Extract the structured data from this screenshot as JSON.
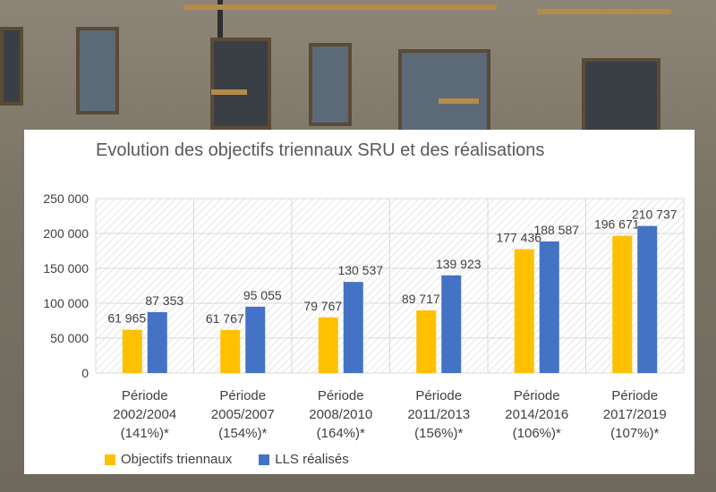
{
  "colors": {
    "objectifs": "#FFC000",
    "realises": "#4472C4",
    "grid": "#d9d9d9",
    "text": "#404040"
  },
  "chart_data": {
    "type": "bar",
    "title": "Evolution des objectifs triennaux SRU et des réalisations",
    "categories": [
      [
        "Période",
        "2002/2004",
        "(141%)*"
      ],
      [
        "Période",
        "2005/2007",
        "(154%)*"
      ],
      [
        "Période",
        "2008/2010",
        "(164%)*"
      ],
      [
        "Période",
        "2011/2013",
        "(156%)*"
      ],
      [
        "Période",
        "2014/2016",
        "(106%)*"
      ],
      [
        "Période",
        "2017/2019",
        "(107%)*"
      ]
    ],
    "series": [
      {
        "name": "Objectifs triennaux",
        "values": [
          61965,
          61767,
          79767,
          89717,
          177436,
          196671
        ],
        "labels": [
          "61 965",
          "61 767",
          "79 767",
          "89 717",
          "177 436",
          "196 671"
        ]
      },
      {
        "name": "LLS réalisés",
        "values": [
          87353,
          95055,
          130537,
          139923,
          188587,
          210737
        ],
        "labels": [
          "87 353",
          "95 055",
          "130 537",
          "139 923",
          "188 587",
          "210 737"
        ]
      }
    ],
    "y_ticks": [
      "0",
      "50 000",
      "100 000",
      "150 000",
      "200 000",
      "250 000"
    ],
    "ylim": [
      0,
      250000
    ],
    "xlabel": "",
    "ylabel": "",
    "grid": true,
    "legend_position": "bottom-left"
  }
}
